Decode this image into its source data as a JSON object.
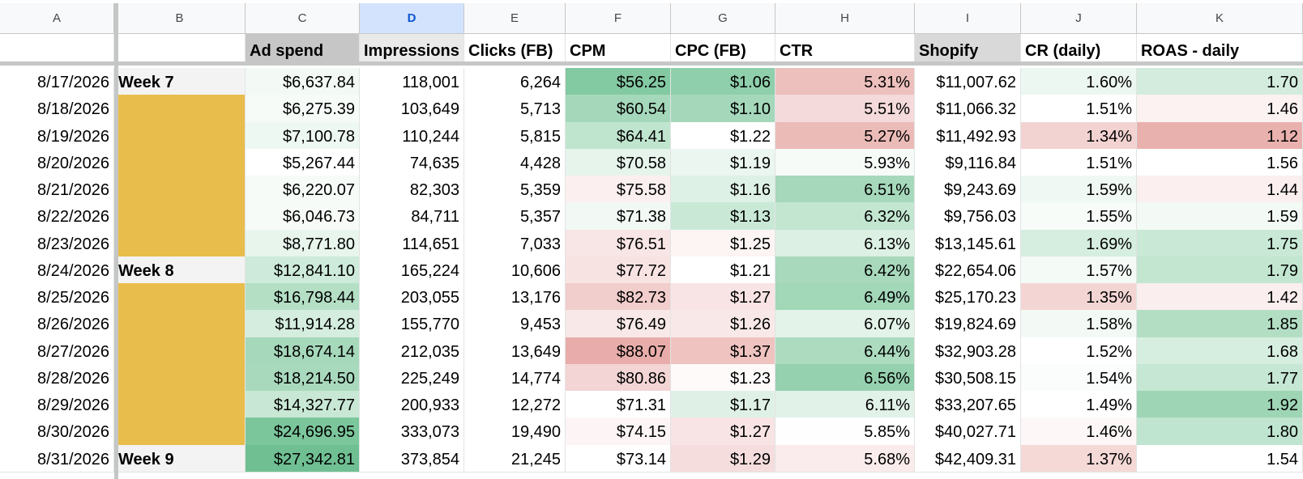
{
  "columns": [
    "A",
    "B",
    "C",
    "D",
    "E",
    "F",
    "G",
    "H",
    "I",
    "J",
    "K"
  ],
  "selected_column": "D",
  "header_row": [
    "",
    "",
    "Ad spend",
    "Impressions",
    "Clicks (FB)",
    "CPM",
    "CPC (FB)",
    "CTR",
    "Shopify",
    "CR (daily)",
    "ROAS - daily"
  ],
  "header_fills": [
    "#ffffff",
    "#ffffff",
    "#c6c6c6",
    "#e9e9e9",
    "#ffffff",
    "#ffffff",
    "#ffffff",
    "#ffffff",
    "#d9d9d9",
    "#ffffff",
    "#ffffff"
  ],
  "rows": [
    {
      "cells": [
        "8/17/2026",
        "Week 7",
        "$6,637.84",
        "118,001",
        "6,264",
        "$56.25",
        "$1.06",
        "5.31%",
        "$11,007.62",
        "1.60%",
        "1.70"
      ],
      "fills": [
        "#ffffff",
        "#f3f3f3",
        "#f3faf5",
        "#ffffff",
        "#ffffff",
        "#83c9a2",
        "#8fcfab",
        "#edc0bd",
        "#ffffff",
        "#edf7f1",
        "#d3ecdd"
      ]
    },
    {
      "cells": [
        "8/18/2026",
        "",
        "$6,275.39",
        "103,649",
        "5,713",
        "$60.54",
        "$1.10",
        "5.51%",
        "$11,066.32",
        "1.51%",
        "1.46"
      ],
      "fills": [
        "#ffffff",
        "#e9bd4c",
        "#f6fbf8",
        "#ffffff",
        "#ffffff",
        "#a5d8bb",
        "#a5d8bb",
        "#f4dada",
        "#ffffff",
        "#ffffff",
        "#fcf2f2"
      ]
    },
    {
      "cells": [
        "8/19/2026",
        "",
        "$7,100.78",
        "110,244",
        "5,815",
        "$64.41",
        "$1.22",
        "5.27%",
        "$11,492.93",
        "1.34%",
        "1.12"
      ],
      "fills": [
        "#ffffff",
        "#e9bd4c",
        "#eef8f2",
        "#ffffff",
        "#ffffff",
        "#c0e5cf",
        "#ffffff",
        "#ebbbb8",
        "#ffffff",
        "#f2d3d1",
        "#e9b1ae"
      ]
    },
    {
      "cells": [
        "8/20/2026",
        "",
        "$5,267.44",
        "74,635",
        "4,428",
        "$70.58",
        "$1.19",
        "5.93%",
        "$9,116.84",
        "1.51%",
        "1.56"
      ],
      "fills": [
        "#ffffff",
        "#e9bd4c",
        "#ffffff",
        "#ffffff",
        "#ffffff",
        "#e6f4ec",
        "#eaf6ef",
        "#f6fbf8",
        "#ffffff",
        "#ffffff",
        "#ffffff"
      ]
    },
    {
      "cells": [
        "8/21/2026",
        "",
        "$6,220.07",
        "82,303",
        "5,359",
        "$75.58",
        "$1.16",
        "6.51%",
        "$9,243.69",
        "1.59%",
        "1.44"
      ],
      "fills": [
        "#ffffff",
        "#e9bd4c",
        "#f6fbf8",
        "#ffffff",
        "#ffffff",
        "#fbefef",
        "#def1e6",
        "#a6d8bb",
        "#ffffff",
        "#f0f8f3",
        "#fbefef"
      ]
    },
    {
      "cells": [
        "8/22/2026",
        "",
        "$6,046.73",
        "84,711",
        "5,357",
        "$71.38",
        "$1.13",
        "6.32%",
        "$9,756.03",
        "1.55%",
        "1.59"
      ],
      "fills": [
        "#ffffff",
        "#e9bd4c",
        "#f7fbf8",
        "#ffffff",
        "#ffffff",
        "#f2f9f5",
        "#c9e9d6",
        "#c2e6d0",
        "#ffffff",
        "#f8fcf9",
        "#f3faf5"
      ]
    },
    {
      "cells": [
        "8/23/2026",
        "",
        "$8,771.80",
        "114,651",
        "7,033",
        "$76.51",
        "$1.25",
        "6.13%",
        "$13,145.61",
        "1.69%",
        "1.75"
      ],
      "fills": [
        "#ffffff",
        "#e9bd4c",
        "#e7f5ed",
        "#ffffff",
        "#ffffff",
        "#f8e5e5",
        "#fdf4f4",
        "#dcf0e4",
        "#ffffff",
        "#d6eee0",
        "#c9e9d6"
      ]
    },
    {
      "cells": [
        "8/24/2026",
        "Week 8",
        "$12,841.10",
        "165,224",
        "10,606",
        "$77.72",
        "$1.21",
        "6.42%",
        "$22,654.06",
        "1.57%",
        "1.79"
      ],
      "fills": [
        "#ffffff",
        "#f3f3f3",
        "#cdeada",
        "#ffffff",
        "#ffffff",
        "#f8e3e3",
        "#ffffff",
        "#a8d9bc",
        "#ffffff",
        "#f4faf6",
        "#c2e6d0"
      ]
    },
    {
      "cells": [
        "8/25/2026",
        "",
        "$16,798.44",
        "203,055",
        "13,176",
        "$82.73",
        "$1.27",
        "6.49%",
        "$25,170.23",
        "1.35%",
        "1.42"
      ],
      "fills": [
        "#ffffff",
        "#e9bd4c",
        "#b4dfc5",
        "#ffffff",
        "#ffffff",
        "#f1cdcb",
        "#f8e4e4",
        "#a2d7b8",
        "#ffffff",
        "#f3d6d4",
        "#fbeeee"
      ]
    },
    {
      "cells": [
        "8/26/2026",
        "",
        "$11,914.28",
        "155,770",
        "9,453",
        "$76.49",
        "$1.26",
        "6.07%",
        "$19,824.69",
        "1.58%",
        "1.85"
      ],
      "fills": [
        "#ffffff",
        "#e9bd4c",
        "#d4eddf",
        "#ffffff",
        "#ffffff",
        "#f8e8e8",
        "#f9e8e8",
        "#e3f3e9",
        "#ffffff",
        "#f3faf5",
        "#b3dec4"
      ]
    },
    {
      "cells": [
        "8/27/2026",
        "",
        "$18,674.14",
        "212,035",
        "13,649",
        "$88.07",
        "$1.37",
        "6.44%",
        "$32,903.28",
        "1.52%",
        "1.68"
      ],
      "fills": [
        "#ffffff",
        "#e9bd4c",
        "#a6d8bb",
        "#ffffff",
        "#ffffff",
        "#e8adaa",
        "#efc3c0",
        "#acdbbf",
        "#ffffff",
        "#ffffff",
        "#d6eee0"
      ]
    },
    {
      "cells": [
        "8/28/2026",
        "",
        "$18,214.50",
        "225,249",
        "14,774",
        "$80.86",
        "$1.23",
        "6.56%",
        "$30,508.15",
        "1.54%",
        "1.77"
      ],
      "fills": [
        "#ffffff",
        "#e9bd4c",
        "#a9d9bd",
        "#ffffff",
        "#ffffff",
        "#f2d5d4",
        "#fefafa",
        "#96d1af",
        "#ffffff",
        "#fafdfb",
        "#c5e7d3"
      ]
    },
    {
      "cells": [
        "8/29/2026",
        "",
        "$14,327.77",
        "200,933",
        "12,272",
        "$71.31",
        "$1.17",
        "6.11%",
        "$33,207.65",
        "1.49%",
        "1.92"
      ],
      "fills": [
        "#ffffff",
        "#e9bd4c",
        "#c8e8d5",
        "#ffffff",
        "#ffffff",
        "#ffffff",
        "#dff1e6",
        "#e1f2e8",
        "#ffffff",
        "#ffffff",
        "#9ed5b5"
      ]
    },
    {
      "cells": [
        "8/30/2026",
        "",
        "$24,696.95",
        "333,073",
        "19,490",
        "$74.15",
        "$1.27",
        "5.85%",
        "$40,027.71",
        "1.46%",
        "1.80"
      ],
      "fills": [
        "#ffffff",
        "#e9bd4c",
        "#7bc69b",
        "#ffffff",
        "#ffffff",
        "#fdf5f5",
        "#f8e4e4",
        "#fefefe",
        "#ffffff",
        "#fdf7f7",
        "#bfe4cf"
      ]
    },
    {
      "cells": [
        "8/31/2026",
        "Week 9",
        "$27,342.81",
        "373,854",
        "21,245",
        "$73.14",
        "$1.29",
        "5.68%",
        "$42,409.31",
        "1.37%",
        "1.54"
      ],
      "fills": [
        "#ffffff",
        "#f3f3f3",
        "#6fbf93",
        "#ffffff",
        "#ffffff",
        "#ffffff",
        "#f6dddd",
        "#faecec",
        "#ffffff",
        "#f4d9d7",
        "#ffffff"
      ]
    }
  ]
}
